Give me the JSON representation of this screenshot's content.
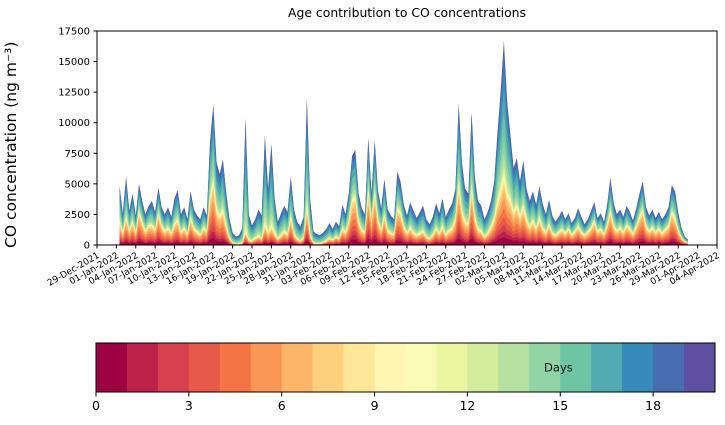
{
  "chart_data": {
    "type": "area",
    "subtype": "stacked-area-age-spectrum",
    "title": "Age contribution to CO concentrations",
    "ylabel": "CO concentration (ng m⁻³)",
    "xlabel": "",
    "ylim": [
      0,
      17500
    ],
    "yticks": [
      0,
      2500,
      5000,
      7500,
      10000,
      12500,
      15000,
      17500
    ],
    "grid": false,
    "x_origin_date": "29-Dec-2021",
    "x_axis_span_days": 96,
    "x_tick_step_days": 3,
    "x_tick_labels": [
      "29-Dec-2021",
      "01-Jan-2022",
      "04-Jan-2022",
      "07-Jan-2022",
      "10-Jan-2022",
      "13-Jan-2022",
      "16-Jan-2022",
      "19-Jan-2022",
      "22-Jan-2022",
      "25-Jan-2022",
      "28-Jan-2022",
      "31-Jan-2022",
      "03-Feb-2022",
      "06-Feb-2022",
      "09-Feb-2022",
      "12-Feb-2022",
      "15-Feb-2022",
      "18-Feb-2022",
      "21-Feb-2022",
      "24-Feb-2022",
      "27-Feb-2022",
      "02-Mar-2022",
      "05-Mar-2022",
      "08-Mar-2022",
      "11-Mar-2022",
      "14-Mar-2022",
      "17-Mar-2022",
      "20-Mar-2022",
      "23-Mar-2022",
      "26-Mar-2022",
      "29-Mar-2022",
      "01-Apr-2022",
      "04-Apr-2022"
    ],
    "series": {
      "description": "Total CO concentration envelope (ng m-3) sampled every 0.5 day from sample_start_day (days after 29-Dec-2021); young_age_fraction = estimated fraction of each column made of young (red/orange/yellow, <~9 day old) air masses",
      "sample_start_day": 3.5,
      "sample_step_days": 0.5,
      "age_layers": 20,
      "age_layer_unit": "days",
      "total_co": [
        4800,
        2600,
        5600,
        2800,
        4200,
        2400,
        5000,
        3600,
        2500,
        3200,
        3600,
        2700,
        4700,
        3100,
        2500,
        3100,
        2300,
        3800,
        4500,
        2500,
        3100,
        2100,
        4400,
        2900,
        2400,
        2100,
        3100,
        2400,
        8400,
        11500,
        6800,
        5800,
        7000,
        4300,
        2200,
        1000,
        700,
        800,
        1400,
        10400,
        2500,
        1600,
        2100,
        2900,
        2400,
        9000,
        4600,
        8300,
        3800,
        1900,
        2600,
        3200,
        2700,
        5600,
        2900,
        1900,
        1500,
        2300,
        12100,
        3800,
        1100,
        900,
        800,
        1000,
        1300,
        1800,
        1300,
        1900,
        1500,
        3300,
        2500,
        4300,
        7300,
        7800,
        4200,
        3000,
        2500,
        8800,
        4200,
        8600,
        4500,
        3000,
        5400,
        2900,
        2400,
        2100,
        6000,
        5200,
        3300,
        2400,
        3500,
        2800,
        2200,
        2700,
        3200,
        2100,
        1700,
        2300,
        3400,
        2600,
        3800,
        2300,
        2900,
        3400,
        4600,
        11600,
        6800,
        4600,
        4200,
        10900,
        5600,
        3600,
        3200,
        2100,
        2700,
        3600,
        5200,
        9100,
        12500,
        16700,
        11800,
        9100,
        6300,
        7100,
        5200,
        6900,
        4600,
        3600,
        4400,
        3300,
        4800,
        3400,
        2500,
        3700,
        2400,
        1900,
        2300,
        2800,
        2100,
        2600,
        1800,
        2200,
        3000,
        2300,
        1700,
        2100,
        2800,
        3500,
        2200,
        2600,
        1900,
        3300,
        5500,
        3400,
        2500,
        2900,
        2300,
        3200,
        2700,
        2000,
        3000,
        4200,
        5200,
        3100,
        2400,
        2900,
        2200,
        2700,
        2100,
        2500,
        3100,
        4900,
        4400,
        2600,
        1400,
        700,
        450
      ],
      "young_age_fraction": [
        0.4,
        0.35,
        0.4,
        0.4,
        0.45,
        0.4,
        0.55,
        0.5,
        0.45,
        0.5,
        0.45,
        0.45,
        0.55,
        0.5,
        0.45,
        0.45,
        0.4,
        0.45,
        0.45,
        0.4,
        0.45,
        0.4,
        0.5,
        0.45,
        0.45,
        0.4,
        0.45,
        0.45,
        0.45,
        0.45,
        0.42,
        0.4,
        0.4,
        0.35,
        0.25,
        0.15,
        0.1,
        0.1,
        0.1,
        0.1,
        0.15,
        0.2,
        0.25,
        0.25,
        0.2,
        0.18,
        0.2,
        0.18,
        0.25,
        0.25,
        0.3,
        0.35,
        0.3,
        0.4,
        0.3,
        0.25,
        0.2,
        0.25,
        0.25,
        0.2,
        0.12,
        0.1,
        0.12,
        0.18,
        0.25,
        0.3,
        0.3,
        0.35,
        0.35,
        0.4,
        0.4,
        0.45,
        0.5,
        0.5,
        0.45,
        0.4,
        0.4,
        0.5,
        0.45,
        0.5,
        0.45,
        0.4,
        0.45,
        0.4,
        0.4,
        0.4,
        0.5,
        0.5,
        0.45,
        0.4,
        0.4,
        0.35,
        0.35,
        0.35,
        0.35,
        0.3,
        0.3,
        0.35,
        0.4,
        0.35,
        0.4,
        0.35,
        0.4,
        0.4,
        0.45,
        0.42,
        0.4,
        0.4,
        0.4,
        0.42,
        0.4,
        0.35,
        0.35,
        0.3,
        0.35,
        0.4,
        0.4,
        0.38,
        0.35,
        0.33,
        0.35,
        0.4,
        0.42,
        0.45,
        0.45,
        0.45,
        0.45,
        0.4,
        0.45,
        0.4,
        0.45,
        0.4,
        0.4,
        0.45,
        0.4,
        0.4,
        0.45,
        0.45,
        0.45,
        0.5,
        0.45,
        0.5,
        0.5,
        0.45,
        0.45,
        0.5,
        0.5,
        0.55,
        0.5,
        0.5,
        0.45,
        0.5,
        0.5,
        0.45,
        0.45,
        0.5,
        0.45,
        0.5,
        0.5,
        0.45,
        0.5,
        0.55,
        0.55,
        0.5,
        0.45,
        0.5,
        0.45,
        0.5,
        0.45,
        0.5,
        0.5,
        0.55,
        0.5,
        0.45,
        0.4,
        0.4,
        0.4
      ]
    }
  },
  "colorbar": {
    "label": "Days",
    "ticks": [
      0,
      3,
      6,
      9,
      12,
      15,
      18
    ],
    "range": [
      0,
      20
    ],
    "segments": 20,
    "colormap": "Spectral",
    "colors": [
      "#9e0142",
      "#bb2149",
      "#d7404e",
      "#e75948",
      "#f57446",
      "#fa9656",
      "#fdb668",
      "#fed07e",
      "#fee796",
      "#fff7b1",
      "#f8fcb5",
      "#ebf7a0",
      "#d3ed9c",
      "#b4e1a2",
      "#92d3a4",
      "#6dc5a5",
      "#50aaaf",
      "#358bbc",
      "#476db0",
      "#5e4fa2"
    ]
  },
  "axis_style": {
    "spine_color": "#000000",
    "tick_color": "#000000",
    "background": "#ffffff"
  }
}
